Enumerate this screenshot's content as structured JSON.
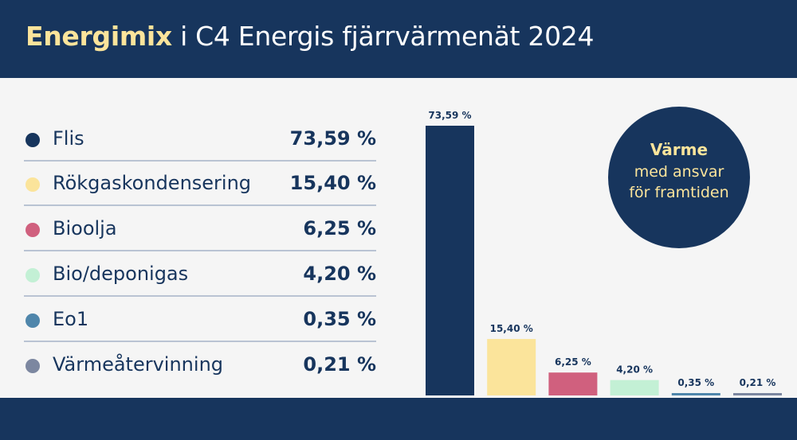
{
  "header": {
    "title_accent": "Energimix",
    "title_rest": " i C4 Energis fjärrvärmenät 2024"
  },
  "badge": {
    "title": "Värme",
    "line1": "med ansvar",
    "line2": "för framtiden"
  },
  "legend": [
    {
      "label": "Flis",
      "value": "73,59 %",
      "color": "#17355d"
    },
    {
      "label": "Rökgaskondensering",
      "value": "15,40 %",
      "color": "#fbe49b"
    },
    {
      "label": "Bioolja",
      "value": "6,25 %",
      "color": "#d0607e"
    },
    {
      "label": "Bio/deponigas",
      "value": "4,20 %",
      "color": "#c3f0d5"
    },
    {
      "label": "Eo1",
      "value": "0,35 %",
      "color": "#4f86ab"
    },
    {
      "label": "Värmeåtervinning",
      "value": "0,21 %",
      "color": "#7c87a0"
    }
  ],
  "chart_data": {
    "type": "bar",
    "categories": [
      "Flis",
      "Rökgaskondensering",
      "Bioolja",
      "Bio/deponigas",
      "Eo1",
      "Värmeåtervinning"
    ],
    "values": [
      73.59,
      15.4,
      6.25,
      4.2,
      0.35,
      0.21
    ],
    "value_labels": [
      "73,59 %",
      "15,40 %",
      "6,25 %",
      "4,20 %",
      "0,35 %",
      "0,21 %"
    ],
    "colors": [
      "#17355d",
      "#fbe49b",
      "#d0607e",
      "#c3f0d5",
      "#4f86ab",
      "#7c87a0"
    ],
    "title": "Energimix i C4 Energis fjärrvärmenät 2024",
    "ylim": [
      0,
      73.59
    ],
    "grid": false,
    "legend_placement": "left"
  }
}
